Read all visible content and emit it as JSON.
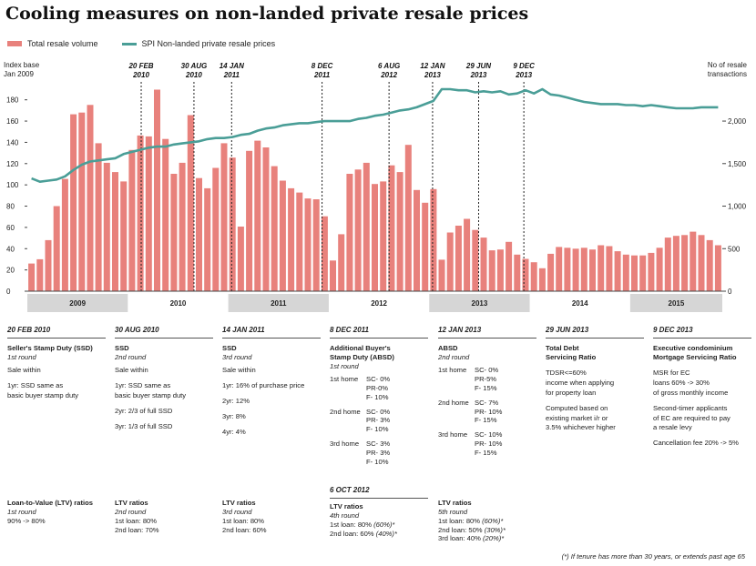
{
  "title": "Cooling measures on non-landed private resale prices",
  "legend": {
    "bars": "Total resale volume",
    "line": "SPI Non-landed private resale prices"
  },
  "colors": {
    "bar": "#e8817c",
    "line": "#4a9e97",
    "yearBand": "#d6d6d6"
  },
  "chart_data": {
    "type": "bar",
    "left_axis": {
      "label_line1": "Index base",
      "label_line2": "Jan 2009",
      "ylim": [
        0,
        190
      ],
      "ticks": [
        "0",
        "20",
        "40",
        "60",
        "80",
        "100",
        "120",
        "140",
        "160",
        "180"
      ]
    },
    "right_axis": {
      "label_line1": "No of resale",
      "label_line2": "transactions",
      "ylim": [
        0,
        2375
      ],
      "ticks": [
        "0",
        "500",
        "1,000",
        "1,500",
        "2,000"
      ]
    },
    "years": [
      "2009",
      "2010",
      "2011",
      "2012",
      "2013",
      "2014",
      "2015"
    ],
    "series": [
      {
        "name": "Total resale volume",
        "axis": "right",
        "values": [
          325,
          375,
          600,
          1000,
          1320,
          2080,
          2100,
          2190,
          1740,
          1510,
          1400,
          1290,
          1660,
          1830,
          1820,
          2370,
          1790,
          1380,
          1510,
          2070,
          1330,
          1210,
          1450,
          1740,
          1570,
          760,
          1650,
          1770,
          1690,
          1470,
          1300,
          1210,
          1160,
          1090,
          1080,
          880,
          360,
          670,
          1380,
          1430,
          1510,
          1260,
          1290,
          1480,
          1400,
          1720,
          1190,
          1040,
          1200,
          370,
          690,
          770,
          850,
          720,
          630,
          480,
          490,
          580,
          430,
          380,
          340,
          270,
          440,
          520,
          510,
          500,
          510,
          490,
          540,
          530,
          470,
          430,
          420,
          420,
          450,
          510,
          630,
          650,
          660,
          700,
          660,
          600,
          540
        ]
      },
      {
        "name": "SPI Non-landed private resale prices",
        "axis": "left",
        "values": [
          106,
          103,
          104,
          105,
          108,
          114,
          119,
          122,
          123,
          124,
          125,
          129,
          131,
          133,
          135,
          136,
          136,
          138,
          139,
          140,
          141,
          143,
          144,
          144,
          145,
          147,
          148,
          151,
          153,
          154,
          156,
          157,
          158,
          158,
          159,
          160,
          160,
          160,
          160,
          162,
          163,
          165,
          166,
          168,
          170,
          171,
          173,
          176,
          179,
          190,
          190,
          189,
          189,
          187,
          188,
          187,
          188,
          185,
          186,
          189,
          186,
          190,
          185,
          184,
          182,
          180,
          178,
          177,
          176,
          176,
          176,
          175,
          175,
          174,
          175,
          174,
          173,
          172,
          172,
          172,
          173,
          173,
          173
        ]
      }
    ],
    "events": [
      {
        "date": "20 FEB",
        "year": "2010",
        "month_index": 13.6
      },
      {
        "date": "30 AUG",
        "year": "2010",
        "month_index": 19.9
      },
      {
        "date": "14 JAN",
        "year": "2011",
        "month_index": 24.4
      },
      {
        "date": "8 DEC",
        "year": "2011",
        "month_index": 35.2
      },
      {
        "date": "6 AUG",
        "year": "2012",
        "month_index": 43.2
      },
      {
        "date": "12 JAN",
        "year": "2013",
        "month_index": 48.4
      },
      {
        "date": "29 JUN",
        "year": "2013",
        "month_index": 53.9
      },
      {
        "date": "9 DEC",
        "year": "2013",
        "month_index": 59.3
      }
    ]
  },
  "cols": {
    "c1": {
      "date": "20 FEB 2010",
      "head": "Seller's Stamp Duty (SSD)",
      "round": "1st round",
      "l1": "Sale within",
      "l2": "1yr: SSD same as",
      "l3": "basic buyer stamp duty"
    },
    "c2": {
      "date": "30 AUG 2010",
      "head": "SSD",
      "round": "2nd round",
      "l1": "Sale within",
      "l2": "1yr: SSD same as",
      "l3": "basic buyer stamp duty",
      "l4": "2yr: 2/3 of full SSD",
      "l5": "3yr: 1/3 of full SSD"
    },
    "c3": {
      "date": "14 JAN 2011",
      "head": "SSD",
      "round": "3rd round",
      "l1": "Sale within",
      "l2": "1yr: 16% of purchase price",
      "l3": "2yr: 12%",
      "l4": "3yr: 8%",
      "l5": "4yr: 4%"
    },
    "c4": {
      "date": "8 DEC 2011",
      "head1": "Additional Buyer's",
      "head2": "Stamp Duty (ABSD)",
      "round": "1st round",
      "r1k": "1st home",
      "r1a": "SC- 0%",
      "r1b": "PR-0%",
      "r1c": "F- 10%",
      "r2k": "2nd home",
      "r2a": "SC- 0%",
      "r2b": "PR- 3%",
      "r2c": "F- 10%",
      "r3k": "3rd home",
      "r3a": "SC- 3%",
      "r3b": "PR- 3%",
      "r3c": "F- 10%",
      "subdate": "6 OCT 2012"
    },
    "c5": {
      "date": "12 JAN 2013",
      "head": "ABSD",
      "round": "2nd round",
      "r1k": "1st home",
      "r1a": "SC- 0%",
      "r1b": "PR-5%",
      "r1c": "F- 15%",
      "r2k": "2nd home",
      "r2a": "SC- 7%",
      "r2b": "PR- 10%",
      "r2c": "F- 15%",
      "r3k": "3rd home",
      "r3a": "SC- 10%",
      "r3b": "PR- 10%",
      "r3c": "F- 15%"
    },
    "c6": {
      "date": "29 JUN 2013",
      "head1": "Total Debt",
      "head2": "Servicing Ratio",
      "l1": "TDSR<=60%",
      "l2": "income when applying",
      "l3": "for property loan",
      "l4": "Computed based on",
      "l5": "existing market i/r or",
      "l6": "3.5% whichever higher"
    },
    "c7": {
      "date": "9 DEC 2013",
      "head1": "Executive condominium",
      "head2": "Mortgage Servicing Ratio",
      "l1": "MSR for EC",
      "l2": "loans 60% -> 30%",
      "l3": "of gross monthly income",
      "l4": "Second-timer applicants",
      "l5": "of EC are required to pay",
      "l6": "a resale levy",
      "l7": "Cancellation fee 20% -> 5%"
    }
  },
  "ltv": {
    "a": {
      "head": "Loan-to-Value (LTV) ratios",
      "round": "1st round",
      "l1": "90% -> 80%"
    },
    "b": {
      "head": "LTV ratios",
      "round": "2nd round",
      "l1": "1st loan: 80%",
      "l2": "2nd loan: 70%"
    },
    "c": {
      "head": "LTV ratios",
      "round": "3rd round",
      "l1": "1st loan: 80%",
      "l2": "2nd loan: 60%"
    },
    "d": {
      "head": "LTV ratios",
      "round": "4th round",
      "l1": "1st loan: 80%",
      "l1i": "(60%)*",
      "l2": "2nd loan: 60%",
      "l2i": "(40%)*"
    },
    "e": {
      "head": "LTV ratios",
      "round": "5th round",
      "l1": "1st loan: 80%",
      "l1i": "(60%)*",
      "l2": "2nd loan: 50%",
      "l2i": "(30%)*",
      "l3": "3rd loan: 40%",
      "l3i": "(20%)*"
    }
  },
  "footnote": "(*) If tenure has more than 30 years, or extends past age 65"
}
